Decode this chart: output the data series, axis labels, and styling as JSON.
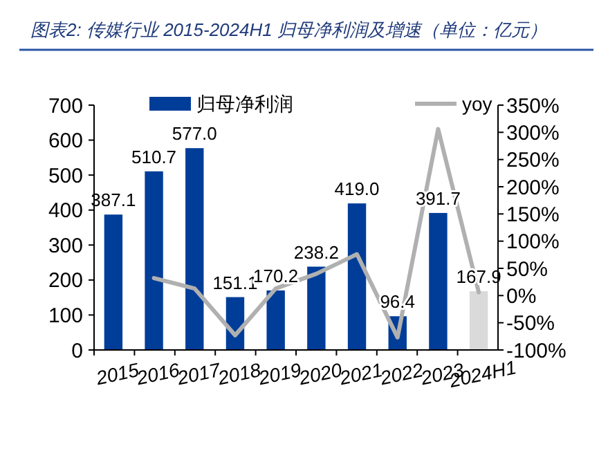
{
  "chart_data": {
    "type": "bar",
    "title": "图表2: 传媒行业 2015-2024H1 归母净利润及增速（单位：亿元）",
    "categories": [
      "2015",
      "2016",
      "2017",
      "2018",
      "2019",
      "2020",
      "2021",
      "2022",
      "2023",
      "2024H1"
    ],
    "series": [
      {
        "name": "归母净利润",
        "color": "#003d99",
        "colors": [
          "#003d99",
          "#003d99",
          "#003d99",
          "#003d99",
          "#003d99",
          "#003d99",
          "#003d99",
          "#003d99",
          "#003d99",
          "#dadada"
        ],
        "values": [
          387.1,
          510.7,
          577.0,
          151.1,
          170.2,
          238.2,
          419.0,
          96.4,
          391.7,
          167.9
        ],
        "value_labels": [
          "387.1",
          "510.7",
          "577.0",
          "151.1",
          "170.2",
          "238.2",
          "419.0",
          "96.4",
          "391.7",
          "167.9"
        ]
      },
      {
        "name": "yoy",
        "type": "line",
        "axis": "y2",
        "color": "#b0b0b0",
        "values": [
          null,
          32,
          13,
          -73,
          13,
          40,
          76,
          -77,
          306,
          6
        ]
      }
    ],
    "ylim": [
      0,
      700
    ],
    "yticks": [
      0,
      100,
      200,
      300,
      400,
      500,
      600,
      700
    ],
    "y2lim": [
      -100,
      350
    ],
    "y2ticks": [
      {
        "value": -100,
        "label": "-100%"
      },
      {
        "value": -50,
        "label": "-50%"
      },
      {
        "value": 0,
        "label": "0%"
      },
      {
        "value": 50,
        "label": "50%"
      },
      {
        "value": 100,
        "label": "100%"
      },
      {
        "value": 150,
        "label": "150%"
      },
      {
        "value": 200,
        "label": "200%"
      },
      {
        "value": 250,
        "label": "250%"
      },
      {
        "value": 300,
        "label": "300%"
      },
      {
        "value": 350,
        "label": "350%"
      }
    ],
    "legend": "top",
    "grid": false,
    "marker": "none",
    "line_style": "solid"
  }
}
